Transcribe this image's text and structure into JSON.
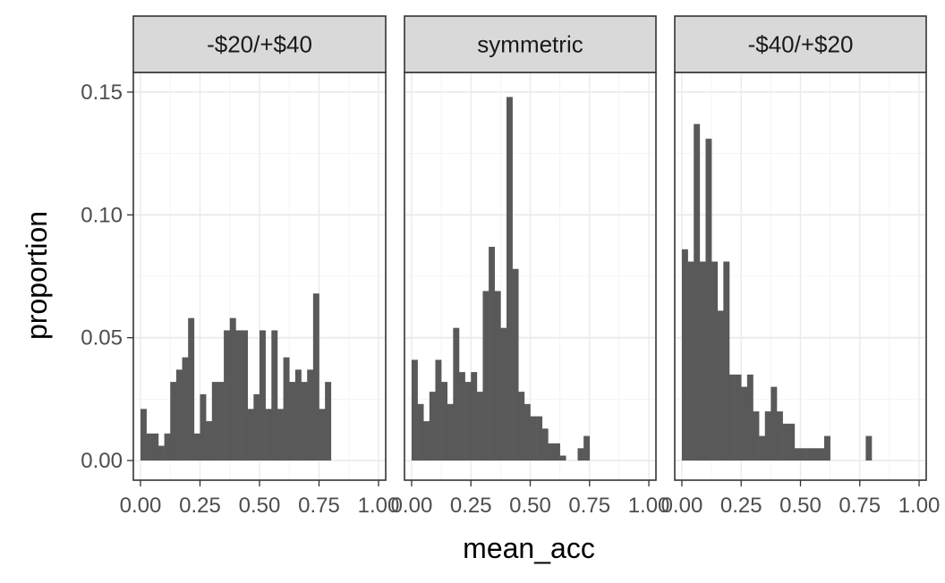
{
  "chart_data": {
    "type": "bar",
    "subtype": "faceted-histogram",
    "xlabel": "mean_acc",
    "ylabel": "proportion",
    "xlim": [
      -0.03,
      1.03
    ],
    "ylim": [
      -0.008,
      0.158
    ],
    "x_ticks": [
      0.0,
      0.25,
      0.5,
      0.75,
      1.0
    ],
    "x_tick_labels": [
      "0.00",
      "0.25",
      "0.50",
      "0.75",
      "1.00"
    ],
    "y_ticks": [
      0.0,
      0.05,
      0.1,
      0.15
    ],
    "y_tick_labels": [
      "0.00",
      "0.05",
      "0.10",
      "0.15"
    ],
    "bin_start": 0.0,
    "bin_width": 0.025,
    "bar_color": "#595959",
    "strip_fill": "#d9d9d9",
    "grid": true,
    "facets": [
      {
        "label": "-$20/+$40",
        "values": [
          0.021,
          0.011,
          0.011,
          0.006,
          0.011,
          0.032,
          0.037,
          0.042,
          0.058,
          0.011,
          0.027,
          0.016,
          0.032,
          0.032,
          0.053,
          0.058,
          0.053,
          0.053,
          0.021,
          0.027,
          0.053,
          0.021,
          0.053,
          0.021,
          0.042,
          0.032,
          0.037,
          0.032,
          0.037,
          0.068,
          0.021,
          0.032
        ]
      },
      {
        "label": "symmetric",
        "values": [
          0.041,
          0.023,
          0.016,
          0.028,
          0.041,
          0.032,
          0.023,
          0.054,
          0.036,
          0.032,
          0.036,
          0.028,
          0.069,
          0.087,
          0.069,
          0.054,
          0.148,
          0.078,
          0.028,
          0.023,
          0.018,
          0.018,
          0.013,
          0.007,
          0.007,
          0.002,
          0.0,
          0.0,
          0.005,
          0.01
        ]
      },
      {
        "label": "-$40/+$20",
        "values": [
          0.086,
          0.081,
          0.137,
          0.081,
          0.131,
          0.081,
          0.061,
          0.081,
          0.035,
          0.035,
          0.03,
          0.035,
          0.02,
          0.01,
          0.02,
          0.03,
          0.02,
          0.015,
          0.015,
          0.005,
          0.005,
          0.005,
          0.005,
          0.005,
          0.01,
          0.0,
          0.0,
          0.0,
          0.0,
          0.0,
          0.0,
          0.01
        ]
      }
    ]
  }
}
